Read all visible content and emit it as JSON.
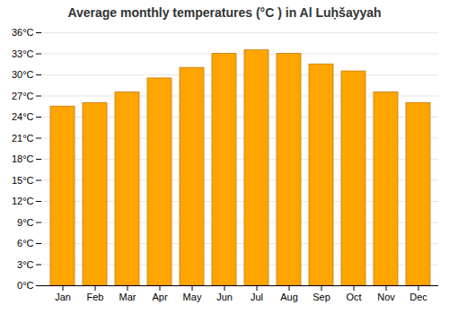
{
  "chart_data": {
    "type": "bar",
    "title": "Average monthly temperatures (°C ) in Al Luḥšayyah",
    "categories": [
      "Jan",
      "Feb",
      "Mar",
      "Apr",
      "May",
      "Jun",
      "Jul",
      "Aug",
      "Sep",
      "Oct",
      "Nov",
      "Dec"
    ],
    "values": [
      25.5,
      26.0,
      27.5,
      29.5,
      31.0,
      33.0,
      33.5,
      33.0,
      31.5,
      30.5,
      27.5,
      26.0
    ],
    "color": "#FFA500",
    "ylim": [
      0,
      36
    ],
    "yticks": [
      {
        "value": 0,
        "label": "0°C"
      },
      {
        "value": 3,
        "label": "3°C"
      },
      {
        "value": 6,
        "label": "6°C"
      },
      {
        "value": 9,
        "label": "9°C"
      },
      {
        "value": 12,
        "label": "12°C"
      },
      {
        "value": 15,
        "label": "15°C"
      },
      {
        "value": 18,
        "label": "18°C"
      },
      {
        "value": 21,
        "label": "21°C"
      },
      {
        "value": 24,
        "label": "24°C"
      },
      {
        "value": 27,
        "label": "27°C"
      },
      {
        "value": 30,
        "label": "30°C"
      },
      {
        "value": 33,
        "label": "33°C"
      },
      {
        "value": 36,
        "label": "36°C"
      }
    ],
    "grid": true
  }
}
